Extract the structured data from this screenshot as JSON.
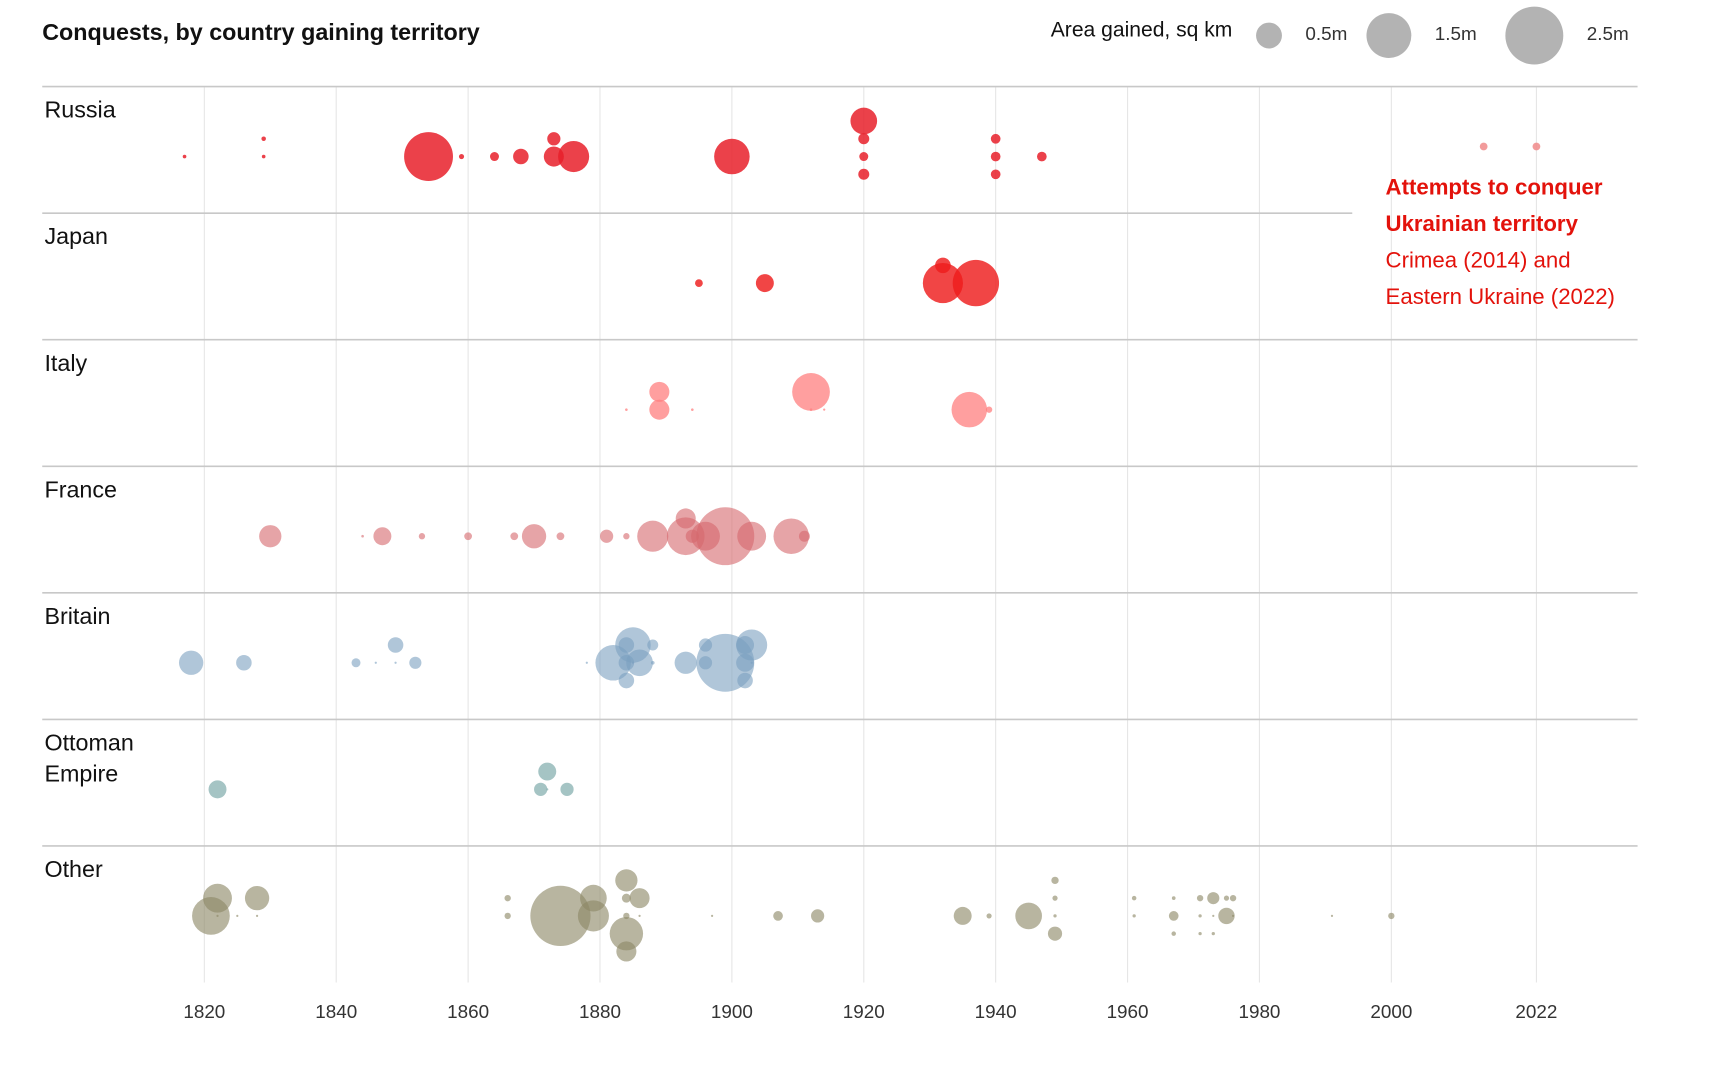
{
  "chart_data": {
    "type": "scatter",
    "subtype": "beeswarm bubble",
    "title": "Conquests, by country gaining territory",
    "legend": {
      "title": "Area gained, sq km",
      "placement": "top-right",
      "sizes": [
        {
          "value": 0.5,
          "label": "0.5m"
        },
        {
          "value": 1.5,
          "label": "1.5m"
        },
        {
          "value": 2.5,
          "label": "2.5m"
        }
      ],
      "color": "#b3b3b3"
    },
    "xlim": [
      1810,
      2030
    ],
    "x_ticks": [
      1820,
      1840,
      1860,
      1880,
      1900,
      1920,
      1940,
      1960,
      1980,
      2000,
      2022
    ],
    "x_tick_labels": [
      "1820",
      "1840",
      "1860",
      "1880",
      "1900",
      "1920",
      "1940",
      "1960",
      "1980",
      "2000",
      "2022"
    ],
    "size_unit": "million sq km",
    "grid": true,
    "annotation": {
      "heading": [
        "Attempts to conquer",
        "Ukrainian territory"
      ],
      "body": [
        "Crimea (2014) and",
        "Eastern Ukraine (2022)"
      ],
      "color": "#e3120b"
    },
    "series": [
      {
        "name": "Russia",
        "label": [
          "Russia"
        ],
        "color": "#e8202a",
        "opacity": 0.85,
        "points": [
          {
            "year": 1817,
            "value": 0.01
          },
          {
            "year": 1829,
            "value": 0.01
          },
          {
            "year": 1829,
            "value": 0.015
          },
          {
            "year": 1854,
            "value": 1.78
          },
          {
            "year": 1859,
            "value": 0.02
          },
          {
            "year": 1864,
            "value": 0.06
          },
          {
            "year": 1868,
            "value": 0.18
          },
          {
            "year": 1873,
            "value": 0.3
          },
          {
            "year": 1873,
            "value": 0.13
          },
          {
            "year": 1876,
            "value": 0.72
          },
          {
            "year": 1900,
            "value": 0.94
          },
          {
            "year": 1920,
            "value": 0.06
          },
          {
            "year": 1920,
            "value": 0.09
          },
          {
            "year": 1920,
            "value": 0.09
          },
          {
            "year": 1920,
            "value": 0.53
          },
          {
            "year": 1940,
            "value": 0.07
          },
          {
            "year": 1940,
            "value": 0.07
          },
          {
            "year": 1940,
            "value": 0.07
          },
          {
            "year": 1947,
            "value": 0.07
          },
          {
            "year": 2014,
            "value": 0.045,
            "color": "#f08a8a"
          },
          {
            "year": 2022,
            "value": 0.045,
            "color": "#f08a8a"
          }
        ]
      },
      {
        "name": "Japan",
        "label": [
          "Japan"
        ],
        "color": "#ee1c1c",
        "opacity": 0.82,
        "points": [
          {
            "year": 1895,
            "value": 0.045
          },
          {
            "year": 1905,
            "value": 0.24
          },
          {
            "year": 1932,
            "value": 1.2
          },
          {
            "year": 1932,
            "value": 0.18
          },
          {
            "year": 1937,
            "value": 1.6
          }
        ]
      },
      {
        "name": "Italy",
        "label": [
          "Italy"
        ],
        "color": "#ff7f7f",
        "opacity": 0.75,
        "points": [
          {
            "year": 1884,
            "value": 0.005
          },
          {
            "year": 1889,
            "value": 0.3
          },
          {
            "year": 1889,
            "value": 0.3
          },
          {
            "year": 1894,
            "value": 0.005
          },
          {
            "year": 1912,
            "value": 0.005
          },
          {
            "year": 1912,
            "value": 1.06
          },
          {
            "year": 1914,
            "value": 0.003
          },
          {
            "year": 1936,
            "value": 0.94
          },
          {
            "year": 1939,
            "value": 0.03
          }
        ]
      },
      {
        "name": "France",
        "label": [
          "France"
        ],
        "color": "#d6686c",
        "opacity": 0.6,
        "points": [
          {
            "year": 1830,
            "value": 0.37
          },
          {
            "year": 1844,
            "value": 0.005
          },
          {
            "year": 1847,
            "value": 0.24
          },
          {
            "year": 1853,
            "value": 0.03
          },
          {
            "year": 1860,
            "value": 0.045
          },
          {
            "year": 1867,
            "value": 0.045
          },
          {
            "year": 1870,
            "value": 0.44
          },
          {
            "year": 1874,
            "value": 0.045
          },
          {
            "year": 1881,
            "value": 0.13
          },
          {
            "year": 1884,
            "value": 0.03
          },
          {
            "year": 1888,
            "value": 0.72
          },
          {
            "year": 1893,
            "value": 1.06
          },
          {
            "year": 1893,
            "value": 0.3
          },
          {
            "year": 1894,
            "value": 0.13
          },
          {
            "year": 1896,
            "value": 0.62
          },
          {
            "year": 1899,
            "value": 2.5
          },
          {
            "year": 1903,
            "value": 0.62
          },
          {
            "year": 1909,
            "value": 0.94
          },
          {
            "year": 1911,
            "value": 0.09
          }
        ]
      },
      {
        "name": "Britain",
        "label": [
          "Britain"
        ],
        "color": "#7ba0bf",
        "opacity": 0.6,
        "points": [
          {
            "year": 1818,
            "value": 0.44
          },
          {
            "year": 1826,
            "value": 0.18
          },
          {
            "year": 1843,
            "value": 0.06
          },
          {
            "year": 1846,
            "value": 0.003
          },
          {
            "year": 1849,
            "value": 0.003
          },
          {
            "year": 1849,
            "value": 0.18
          },
          {
            "year": 1852,
            "value": 0.11
          },
          {
            "year": 1878,
            "value": 0.003
          },
          {
            "year": 1882,
            "value": 0.94
          },
          {
            "year": 1884,
            "value": 0.18
          },
          {
            "year": 1884,
            "value": 0.18
          },
          {
            "year": 1884,
            "value": 0.18
          },
          {
            "year": 1885,
            "value": 0.003
          },
          {
            "year": 1885,
            "value": 0.94
          },
          {
            "year": 1886,
            "value": 0.53
          },
          {
            "year": 1888,
            "value": 0.01
          },
          {
            "year": 1888,
            "value": 0.09
          },
          {
            "year": 1893,
            "value": 0.37
          },
          {
            "year": 1896,
            "value": 0.13
          },
          {
            "year": 1896,
            "value": 0.13
          },
          {
            "year": 1899,
            "value": 2.5
          },
          {
            "year": 1902,
            "value": 0.24
          },
          {
            "year": 1902,
            "value": 0.24
          },
          {
            "year": 1902,
            "value": 0.18
          },
          {
            "year": 1903,
            "value": 0.003
          },
          {
            "year": 1903,
            "value": 0.72
          }
        ]
      },
      {
        "name": "Ottoman Empire",
        "label": [
          "Ottoman",
          "Empire"
        ],
        "color": "#8fb5b5",
        "opacity": 0.8,
        "points": [
          {
            "year": 1822,
            "value": 0.24
          },
          {
            "year": 1871,
            "value": 0.13
          },
          {
            "year": 1872,
            "value": 0.003
          },
          {
            "year": 1872,
            "value": 0.24
          },
          {
            "year": 1875,
            "value": 0.13
          }
        ]
      },
      {
        "name": "Other",
        "label": [
          "Other"
        ],
        "color": "#8c8765",
        "opacity": 0.62,
        "points": [
          {
            "year": 1821,
            "value": 1.06
          },
          {
            "year": 1822,
            "value": 0.003
          },
          {
            "year": 1822,
            "value": 0.62
          },
          {
            "year": 1825,
            "value": 0.003
          },
          {
            "year": 1828,
            "value": 0.003
          },
          {
            "year": 1828,
            "value": 0.44
          },
          {
            "year": 1866,
            "value": 0.03
          },
          {
            "year": 1866,
            "value": 0.03
          },
          {
            "year": 1874,
            "value": 2.7
          },
          {
            "year": 1879,
            "value": 0.72
          },
          {
            "year": 1879,
            "value": 0.53
          },
          {
            "year": 1884,
            "value": 0.03
          },
          {
            "year": 1884,
            "value": 0.06
          },
          {
            "year": 1884,
            "value": 0.83
          },
          {
            "year": 1884,
            "value": 0.37
          },
          {
            "year": 1884,
            "value": 0.3
          },
          {
            "year": 1886,
            "value": 0.003
          },
          {
            "year": 1886,
            "value": 0.3
          },
          {
            "year": 1897,
            "value": 0.003
          },
          {
            "year": 1907,
            "value": 0.07
          },
          {
            "year": 1913,
            "value": 0.13
          },
          {
            "year": 1935,
            "value": 0.24
          },
          {
            "year": 1939,
            "value": 0.02
          },
          {
            "year": 1945,
            "value": 0.53
          },
          {
            "year": 1949,
            "value": 0.008
          },
          {
            "year": 1949,
            "value": 0.02
          },
          {
            "year": 1949,
            "value": 0.15
          },
          {
            "year": 1949,
            "value": 0.04
          },
          {
            "year": 1961,
            "value": 0.008
          },
          {
            "year": 1961,
            "value": 0.015
          },
          {
            "year": 1967,
            "value": 0.07
          },
          {
            "year": 1967,
            "value": 0.01
          },
          {
            "year": 1967,
            "value": 0.015
          },
          {
            "year": 1971,
            "value": 0.008
          },
          {
            "year": 1971,
            "value": 0.03
          },
          {
            "year": 1971,
            "value": 0.008
          },
          {
            "year": 1973,
            "value": 0.003
          },
          {
            "year": 1973,
            "value": 0.11
          },
          {
            "year": 1973,
            "value": 0.008
          },
          {
            "year": 1975,
            "value": 0.2
          },
          {
            "year": 1975,
            "value": 0.02
          },
          {
            "year": 1976,
            "value": 0.003
          },
          {
            "year": 1976,
            "value": 0.03
          },
          {
            "year": 1991,
            "value": 0.003
          },
          {
            "year": 2000,
            "value": 0.03
          }
        ]
      }
    ]
  }
}
